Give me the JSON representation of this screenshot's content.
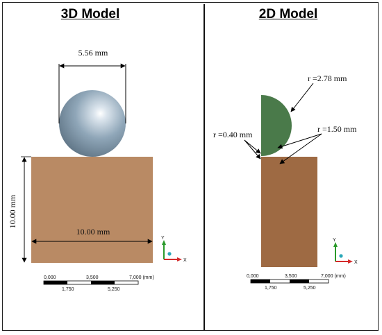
{
  "panels": {
    "left": {
      "title": "3D Model",
      "sphere_diameter_label": "5.56 mm",
      "block_height_label": "10.00 mm",
      "block_width_label": "10.00 mm"
    },
    "right": {
      "title": "2D Model",
      "radius_large_label": "r =2.78 mm",
      "radius_small_label": "r =0.40 mm",
      "radius_fillet_label": "r =1.50 mm"
    }
  },
  "scalebar": {
    "top_labels": [
      "0,000",
      "3,500",
      "7,000 (mm)"
    ],
    "bottom_labels": [
      "1,750",
      "5,250"
    ]
  },
  "axes": {
    "y_label": "Y",
    "x_label": "X"
  },
  "colors": {
    "block_left": "#b98a64",
    "block_right": "#9e6a43",
    "sphere": "#8fa6b8",
    "half_disc": "#4a7a4a",
    "axis_y": "#2a9a2a",
    "axis_x": "#d42a2a",
    "axis_z": "#2aa7b8"
  }
}
